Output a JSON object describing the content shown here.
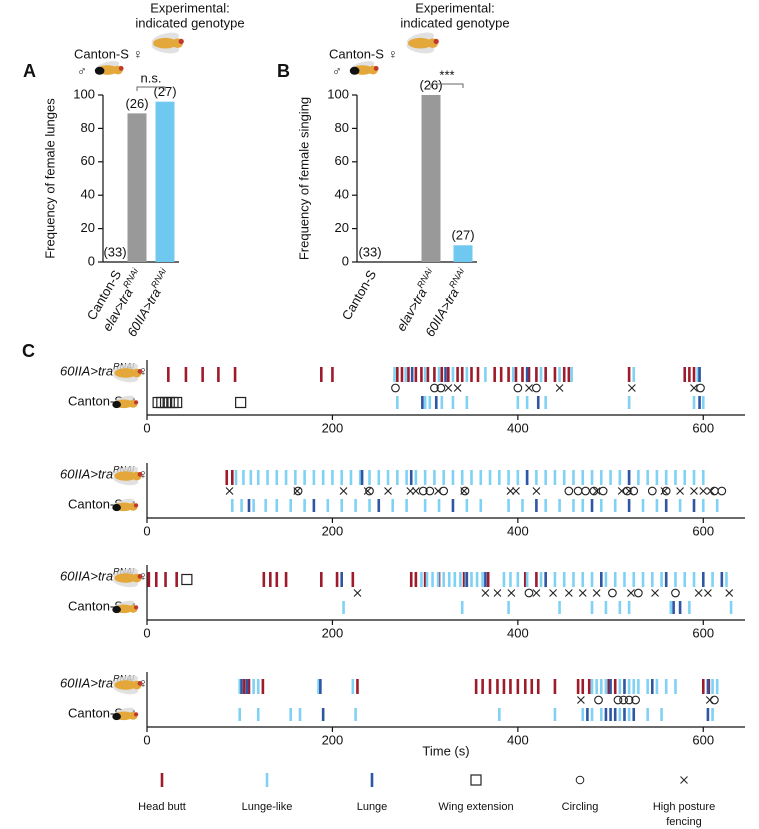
{
  "chart_data": [
    {
      "type": "bar",
      "panel": "A",
      "header": [
        "Experimental:",
        "indicated genotype"
      ],
      "male_genotype": "Canton-S",
      "female_symbol": "♀",
      "male_symbol": "♂",
      "ylabel": "Frequency of female lunges",
      "categories": [
        {
          "name": "Canton-S"
        },
        {
          "name": "elav>tra",
          "superscript": "RNAi"
        },
        {
          "name": "60IIA>tra",
          "superscript": "RNAi"
        }
      ],
      "values": [
        0,
        89,
        96
      ],
      "colors": [
        "#999999",
        "#999999",
        "#6ec8f0"
      ],
      "sample_size_labels": [
        "(33)",
        "(26)",
        "(27)"
      ],
      "significance_label": "n.s.",
      "ylim": [
        0,
        100
      ],
      "yticks": [
        0,
        20,
        40,
        60,
        80,
        100
      ]
    },
    {
      "type": "bar",
      "panel": "B",
      "header": [
        "Experimental:",
        "indicated genotype"
      ],
      "male_genotype": "Canton-S",
      "female_symbol": "♀",
      "male_symbol": "♂",
      "ylabel": "Frequency of female singing",
      "categories": [
        {
          "name": "Canton-S"
        },
        {
          "name": "elav>tra",
          "superscript": "RNAi"
        },
        {
          "name": "60IIA>tra",
          "superscript": "RNAi"
        }
      ],
      "values": [
        0,
        100,
        10
      ],
      "colors": [
        "#999999",
        "#999999",
        "#6ec8f0"
      ],
      "sample_size_labels": [
        "(33)",
        "(26)",
        "(27)"
      ],
      "significance_label": "***",
      "ylim": [
        0,
        100
      ],
      "yticks": [
        0,
        20,
        40,
        60,
        80,
        100
      ]
    },
    {
      "type": "ethogram",
      "panel": "C",
      "xlabel": "Time (s)",
      "xlim": [
        0,
        645
      ],
      "xticks": [
        0,
        200,
        400,
        600
      ],
      "behaviors": [
        {
          "name": "Head butt",
          "color": "#9e1b2c",
          "marker": "bar"
        },
        {
          "name": "Lunge-like",
          "color": "#7fd2f4",
          "marker": "bar"
        },
        {
          "name": "Lunge",
          "color": "#2f55a4",
          "marker": "bar"
        },
        {
          "name": "Wing extension",
          "color": "#222222",
          "marker": "square"
        },
        {
          "name": "Circling",
          "color": "#222222",
          "marker": "circle"
        },
        {
          "name": "High posture fencing",
          "color": "#222222",
          "marker": "cross"
        }
      ],
      "trials": [
        {
          "rows": [
            {
              "label": {
                "name": "60IIA>tra",
                "superscript": "RNAi",
                "sex": "♀"
              },
              "events": [
                [
                  23,
                  42,
                  60,
                  77,
                  95,
                  188,
                  200,
                  270,
                  275,
                  282,
                  290,
                  296,
                  303,
                  310,
                  318,
                  325,
                  335,
                  340,
                  350,
                  357,
                  375,
                  382,
                  390,
                  398,
                  405,
                  412,
                  420,
                  430,
                  440,
                  450,
                  455,
                  520,
                  580,
                  585,
                  590
                ],
                [
                  267,
                  279,
                  300,
                  315,
                  330,
                  345,
                  365,
                  395,
                  425,
                  445,
                  458,
                  525,
                  594
                ],
                [
                  286,
                  322,
                  410,
                  596
                ],
                [],
                [
                  268,
                  310,
                  317,
                  400,
                  420,
                  597
                ],
                [
                  325,
                  335,
                  412,
                  445,
                  523,
                  590
                ]
              ]
            },
            {
              "label": {
                "name": "Canton-S",
                "sex": "♂"
              },
              "events": [
                [],
                [
                  270,
                  300,
                  305,
                  318,
                  330,
                  345,
                  400,
                  410,
                  430,
                  520,
                  590,
                  600
                ],
                [
                  297,
                  312,
                  422,
                  596
                ],
                [
                  12,
                  16,
                  20,
                  24,
                  28,
                  32,
                  101
                ],
                [],
                []
              ]
            }
          ]
        },
        {
          "rows": [
            {
              "label": {
                "name": "60IIA>tra",
                "superscript": "RNAi",
                "sex": "♀"
              },
              "events": [
                [
                  86,
                  92
                ],
                [
                  96,
                  104,
                  112,
                  120,
                  130,
                  140,
                  150,
                  160,
                  170,
                  180,
                  190,
                  200,
                  210,
                  220,
                  230,
                  240,
                  250,
                  260,
                  270,
                  280,
                  290,
                  300,
                  310,
                  320,
                  330,
                  340,
                  350,
                  360,
                  370,
                  380,
                  390,
                  400,
                  410,
                  420,
                  430,
                  440,
                  450,
                  460,
                  470,
                  480,
                  490,
                  500,
                  510,
                  520,
                  530,
                  540,
                  550,
                  560,
                  570,
                  580,
                  590,
                  600
                ],
                [
                  232,
                  285,
                  410,
                  520
                ],
                [],
                [
                  163,
                  240,
                  298,
                  305,
                  320,
                  343,
                  455,
                  465,
                  473,
                  482,
                  492,
                  518,
                  525,
                  545,
                  560,
                  612,
                  620
                ],
                [
                  89,
                  162,
                  212,
                  238,
                  260,
                  284,
                  290,
                  314,
                  342,
                  392,
                  398,
                  420,
                  485,
                  512,
                  520,
                  558,
                  575,
                  590,
                  600,
                  608
                ]
              ]
            },
            {
              "label": {
                "name": "Canton-S",
                "sex": "♂"
              },
              "events": [
                [],
                [
                  92,
                  102,
                  115,
                  128,
                  140,
                  155,
                  170,
                  195,
                  210,
                  225,
                  240,
                  265,
                  280,
                  300,
                  315,
                  345,
                  360,
                  390,
                  405,
                  430,
                  445,
                  460,
                  470,
                  490,
                  505,
                  535,
                  550,
                  575,
                  600,
                  615
                ],
                [
                  110,
                  180,
                  250,
                  330,
                  420,
                  480,
                  520,
                  560,
                  590
                ],
                [],
                [],
                []
              ]
            }
          ]
        },
        {
          "rows": [
            {
              "label": {
                "name": "60IIA>tra",
                "superscript": "RNAi",
                "sex": "♀"
              },
              "events": [
                [
                  2,
                  10,
                  20,
                  32,
                  126,
                  133,
                  140,
                  150,
                  188,
                  205,
                  222,
                  285,
                  290,
                  300,
                  315,
                  342,
                  368,
                  408,
                  420
                ],
                [
                  296,
                  302,
                  308,
                  314,
                  320,
                  326,
                  332,
                  338,
                  344,
                  350,
                  356,
                  362,
                  385,
                  392,
                  400,
                  410,
                  425,
                  440,
                  450,
                  460,
                  470,
                  480,
                  495,
                  505,
                  515,
                  525,
                  535,
                  545,
                  555,
                  570,
                  580,
                  590,
                  610,
                  625
                ],
                [
                  210,
                  345,
                  365,
                  430,
                  490,
                  560,
                  600,
                  620
                ],
                [
                  43
                ],
                [
                  412,
                  502,
                  530,
                  570
                ],
                [
                  227,
                  365,
                  378,
                  393,
                  420,
                  438,
                  455,
                  470,
                  485,
                  522,
                  548,
                  595,
                  605,
                  628
                ]
              ]
            },
            {
              "label": {
                "name": "Canton-S",
                "sex": "♂"
              },
              "events": [
                [],
                [
                  212,
                  340,
                  390,
                  445,
                  480,
                  495,
                  510,
                  520,
                  565,
                  585,
                  630
                ],
                [
                  568,
                  575
                ],
                [],
                [],
                []
              ]
            }
          ]
        },
        {
          "rows": [
            {
              "label": {
                "name": "60IIA>tra",
                "superscript": "RNAi",
                "sex": "♀"
              },
              "events": [
                [
                  105,
                  110,
                  125,
                  227,
                  355,
                  362,
                  370,
                  378,
                  385,
                  392,
                  400,
                  408,
                  415,
                  422,
                  440,
                  465,
                  470,
                  477,
                  498,
                  505,
                  600,
                  606
                ],
                [
                  100,
                  115,
                  120,
                  185,
                  222,
                  480,
                  485,
                  490,
                  495,
                  510,
                  520,
                  525,
                  530,
                  540,
                  550,
                  560,
                  570,
                  610,
                  615
                ],
                [
                  102,
                  108,
                  187,
                  500,
                  515,
                  545,
                  605
                ],
                [],
                [
                  487,
                  508,
                  514,
                  520,
                  527,
                  612
                ],
                [
                  468,
                  607
                ]
              ]
            },
            {
              "label": {
                "name": "Canton-S",
                "sex": "♂"
              },
              "events": [
                [],
                [
                  100,
                  120,
                  155,
                  165,
                  225,
                  380,
                  440,
                  470,
                  480,
                  490,
                  510,
                  520,
                  540,
                  555,
                  610
                ],
                [
                  190,
                  475,
                  495,
                  500,
                  505,
                  515,
                  525,
                  605
                ],
                [],
                [],
                []
              ]
            }
          ]
        }
      ]
    }
  ]
}
